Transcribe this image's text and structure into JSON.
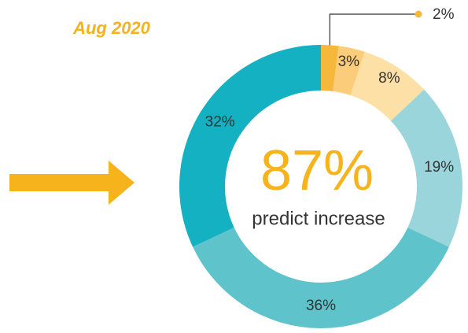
{
  "chart_data": {
    "type": "donut",
    "title": "Aug 2020",
    "center_label": "87%",
    "center_sublabel": "predict increase",
    "values": [
      2,
      3,
      8,
      19,
      36,
      32
    ],
    "value_labels": [
      "2%",
      "3%",
      "8%",
      "19%",
      "36%",
      "32%"
    ],
    "colors": [
      "#f5b83d",
      "#fbcd7a",
      "#fde0a5",
      "#9bd5dc",
      "#5ec3ca",
      "#13b1c1"
    ]
  }
}
